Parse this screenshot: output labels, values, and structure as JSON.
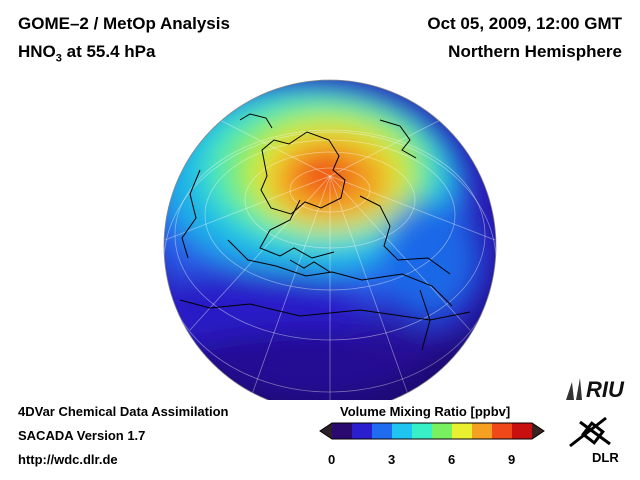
{
  "header": {
    "title_line1": "GOME–2 / MetOp Analysis",
    "title_species": "HNO",
    "title_subscript": "3",
    "title_level": " at 55.4 hPa",
    "date": "Oct 05, 2009, 12:00 GMT",
    "region": "Northern Hemisphere"
  },
  "footer": {
    "line1": "4DVar Chemical Data Assimilation",
    "line2": "SACADA Version 1.7",
    "line3": "http://wdc.dlr.de"
  },
  "colorbar": {
    "title": "Volume Mixing Ratio [ppbv]",
    "min": 0,
    "max": 10,
    "ticks": [
      "0",
      "3",
      "6",
      "9"
    ],
    "colors": [
      "#2a0a6e",
      "#2b1ecf",
      "#1f6cf0",
      "#1fc4f0",
      "#38f0c8",
      "#78f060",
      "#e8f030",
      "#f5a020",
      "#f04818",
      "#c81010"
    ]
  },
  "logos": {
    "riu_text": "RIU",
    "dlr_text": "DLR"
  }
}
